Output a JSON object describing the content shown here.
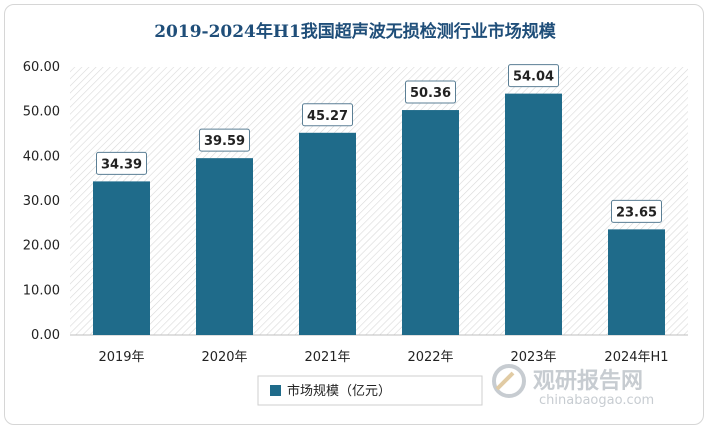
{
  "chart_data": {
    "type": "bar",
    "title": "2019-2024年H1我国超声波无损检测行业市场规模",
    "categories": [
      "2019年",
      "2020年",
      "2021年",
      "2022年",
      "2023年",
      "2024年H1"
    ],
    "series": [
      {
        "name": "市场规模（亿元）",
        "values": [
          34.39,
          39.59,
          45.27,
          50.36,
          54.04,
          23.65
        ],
        "labels": [
          "34.39",
          "39.59",
          "45.27",
          "50.36",
          "54.04",
          "23.65"
        ]
      }
    ],
    "yticks": [
      "0.00",
      "10.00",
      "20.00",
      "30.00",
      "40.00",
      "50.00",
      "60.00"
    ],
    "ylim": [
      0,
      60
    ],
    "xlabel": "",
    "ylabel": "",
    "legend": "bottom",
    "bar_color": "#1f6b8a"
  },
  "watermark": {
    "brand": "观研报告网",
    "url": "chinabaogao.com"
  }
}
